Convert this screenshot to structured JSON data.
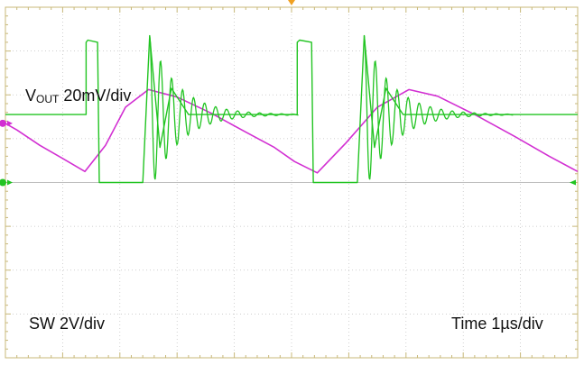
{
  "chart_data": {
    "type": "line",
    "grid": true,
    "divisions": {
      "x": 10,
      "y": 8
    },
    "x_unit_per_div": "1µs",
    "series": [
      {
        "name": "VOUT",
        "scale_label": "20mV/div",
        "color": "#d22fd2",
        "x": [
          0.0,
          0.2,
          0.6,
          1.0,
          1.39,
          1.75,
          2.1,
          2.5,
          3.0,
          3.6,
          4.2,
          4.7,
          5.05,
          5.45,
          5.95,
          6.5,
          7.05,
          7.55,
          8.2,
          8.9,
          9.5,
          10.0
        ],
        "y": [
          1.35,
          1.2,
          0.85,
          0.55,
          0.25,
          0.85,
          1.72,
          2.12,
          1.95,
          1.58,
          1.15,
          0.8,
          0.48,
          0.22,
          0.9,
          1.72,
          2.12,
          1.97,
          1.55,
          1.05,
          0.6,
          0.25
        ]
      },
      {
        "name": "SW",
        "scale_label": "2V/div",
        "color": "#22c422",
        "x": [
          0.0,
          1.41,
          1.41,
          1.44,
          1.61,
          1.64,
          2.4,
          2.52,
          2.7,
          2.9,
          3.2,
          3.7,
          4.2,
          4.95,
          5.1,
          5.1,
          5.14,
          5.35,
          5.38,
          6.15,
          6.27,
          6.45,
          6.65,
          6.95,
          7.45,
          8.0,
          8.6,
          9.2,
          10.0
        ],
        "y": [
          1.55,
          1.55,
          3.2,
          3.25,
          3.2,
          0.0,
          0.0,
          3.35,
          0.8,
          2.15,
          1.55,
          1.55,
          1.55,
          1.55,
          1.55,
          3.2,
          3.25,
          3.2,
          0.0,
          0.0,
          3.35,
          0.8,
          2.15,
          1.55,
          1.55,
          1.55,
          1.55,
          1.55,
          1.55
        ]
      }
    ],
    "labels": {
      "vout_main": "V",
      "vout_sub": "OUT",
      "vout_scale": "20mV/div",
      "sw": "SW 2V/div",
      "time": "Time 1µs/div"
    },
    "colors": {
      "grid": "#bfbfbf",
      "tick": "#c8b87a",
      "trigger": "#f0a020",
      "vout": "#d22fd2",
      "sw": "#22c422"
    }
  }
}
